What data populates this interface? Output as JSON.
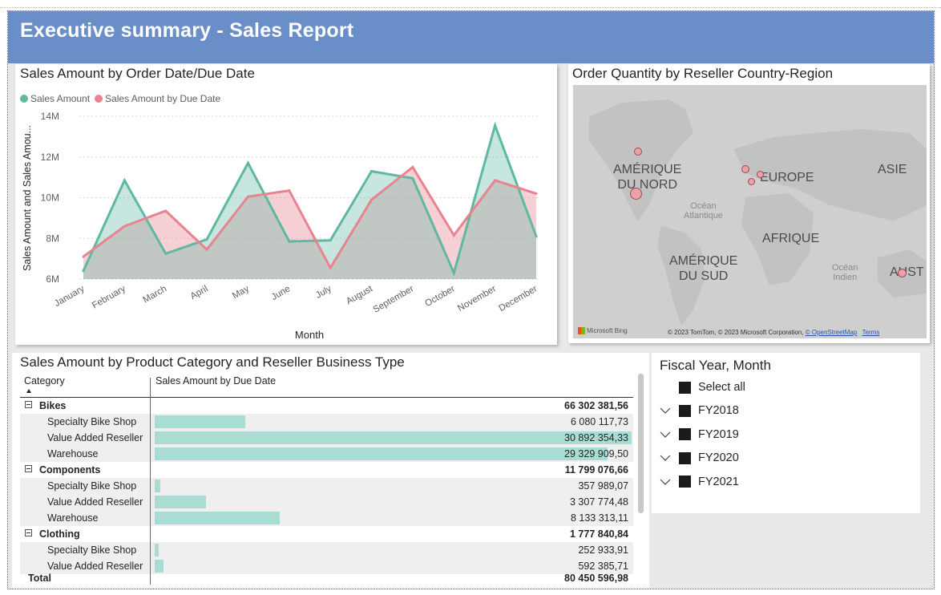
{
  "header": {
    "title": "Executive summary - Sales Report"
  },
  "line_chart": {
    "title": "Sales Amount by Order Date/Due Date",
    "legend": [
      {
        "label": "Sales Amount",
        "color": "#5fb8a2"
      },
      {
        "label": "Sales Amount by Due Date",
        "color": "#e7848f"
      }
    ]
  },
  "chart_data": {
    "type": "area",
    "title": "Sales Amount by Order Date/Due Date",
    "xlabel": "Month",
    "ylabel": "Sales Amount and Sales Amou...",
    "categories": [
      "January",
      "February",
      "March",
      "April",
      "May",
      "June",
      "July",
      "August",
      "September",
      "October",
      "November",
      "December"
    ],
    "yticks": [
      "6M",
      "8M",
      "10M",
      "12M",
      "14M"
    ],
    "ylim": [
      6000000,
      14000000
    ],
    "grid": true,
    "legend_position": "top-left",
    "series": [
      {
        "name": "Sales Amount",
        "color": "#5fb8a2",
        "values": [
          6400000,
          10850000,
          7250000,
          7950000,
          11700000,
          7850000,
          7900000,
          11300000,
          10950000,
          6300000,
          13550000,
          8100000
        ]
      },
      {
        "name": "Sales Amount by Due Date",
        "color": "#e7848f",
        "values": [
          7100000,
          8600000,
          9350000,
          7450000,
          10050000,
          10350000,
          6550000,
          9900000,
          11500000,
          8150000,
          10850000,
          10200000
        ]
      }
    ]
  },
  "map": {
    "title": "Order Quantity by Reseller Country-Region",
    "labels": {
      "na": "AMÉRIQUE\nDU NORD",
      "europe": "EUROPE",
      "asia": "ASIE",
      "africa": "AFRIQUE",
      "sa": "AMÉRIQUE\nDU SUD",
      "aus": "AUST",
      "atlantic": "Océan\nAtlantique",
      "indian": "Océan\nIndien"
    },
    "bing": "Microsoft Bing",
    "credit": "© 2023 TomTom, © 2023 Microsoft Corporation,",
    "credit_osm": "© OpenStreetMap",
    "credit_terms": "Terms",
    "bubble_color": "#e8a2a8"
  },
  "matrix": {
    "title": "Sales Amount by Product Category and Reseller Business Type",
    "col_category": "Category",
    "col_value": "Sales Amount by Due Date",
    "rows": [
      {
        "label": "Bikes",
        "value": "66 302 381,56",
        "level": 0
      },
      {
        "label": "Specialty Bike Shop",
        "value": "6 080 117,73",
        "level": 1,
        "bar": 0.19
      },
      {
        "label": "Value Added Reseller",
        "value": "30 892 354,33",
        "level": 1,
        "bar": 1.0
      },
      {
        "label": "Warehouse",
        "value": "29 329 909,50",
        "level": 1,
        "bar": 0.95
      },
      {
        "label": "Components",
        "value": "11 799 076,66",
        "level": 0
      },
      {
        "label": "Specialty Bike Shop",
        "value": "357 989,07",
        "level": 1,
        "bar": 0.012
      },
      {
        "label": "Value Added Reseller",
        "value": "3 307 774,48",
        "level": 1,
        "bar": 0.107
      },
      {
        "label": "Warehouse",
        "value": "8 133 313,11",
        "level": 1,
        "bar": 0.263
      },
      {
        "label": "Clothing",
        "value": "1 777 840,84",
        "level": 0
      },
      {
        "label": "Specialty Bike Shop",
        "value": "252 933,91",
        "level": 1,
        "bar": 0.008
      },
      {
        "label": "Value Added Reseller",
        "value": "592 385,71",
        "level": 1,
        "bar": 0.019
      }
    ],
    "total_label": "Total",
    "total_value": "80 450 596,98"
  },
  "slicer": {
    "title": "Fiscal Year, Month",
    "select_all": "Select all",
    "items": [
      "FY2018",
      "FY2019",
      "FY2020",
      "FY2021"
    ]
  }
}
